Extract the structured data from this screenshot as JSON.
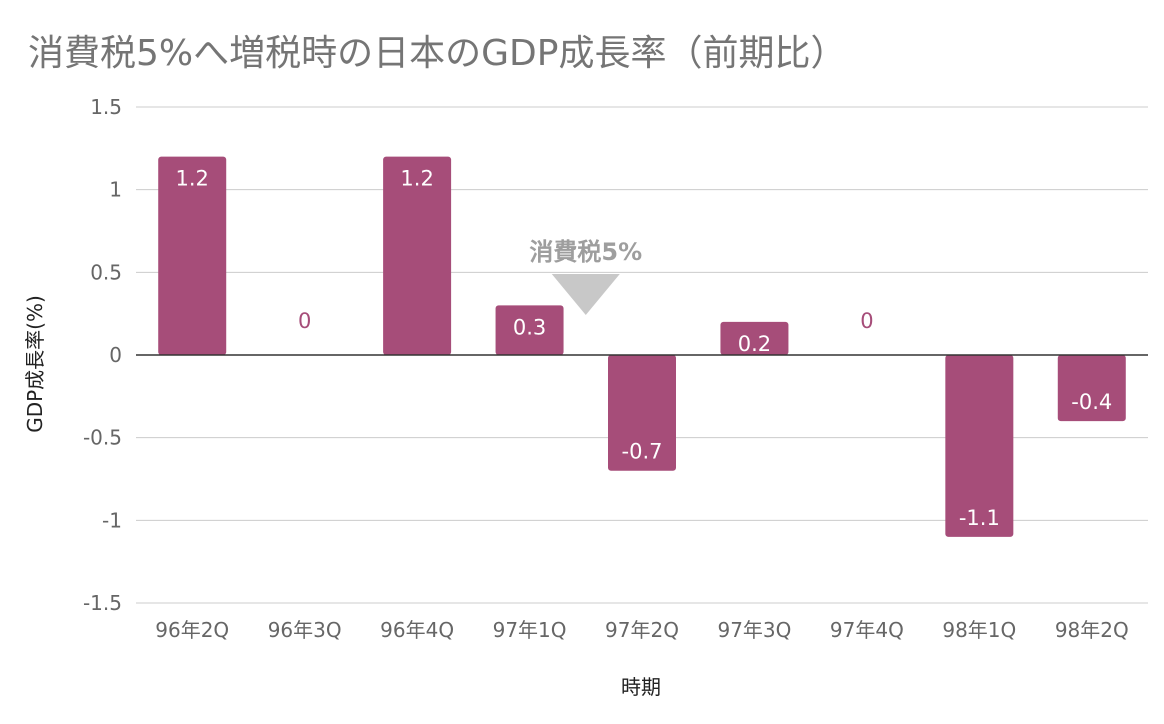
{
  "title": "消費税5%へ増税時の日本のGDP成長率（前期比）",
  "chart_data": {
    "type": "bar",
    "categories": [
      "96年2Q",
      "96年3Q",
      "96年4Q",
      "97年1Q",
      "97年2Q",
      "97年3Q",
      "97年4Q",
      "98年1Q",
      "98年2Q"
    ],
    "series": [
      {
        "values": [
          1.2,
          0,
          1.2,
          0.3,
          -0.7,
          0.2,
          0,
          -1.1,
          -0.4
        ]
      }
    ],
    "data_labels": [
      "1.2",
      "0",
      "1.2",
      "0.3",
      "-0.7",
      "0.2",
      "0",
      "-1.1",
      "-0.4"
    ],
    "xlabel": "時期",
    "ylabel": "GDP成長率(%)",
    "ylim": [
      -1.5,
      1.5
    ],
    "yticks": [
      1.5,
      1,
      0.5,
      0,
      -0.5,
      -1,
      -1.5
    ],
    "ytick_labels": [
      "1.5",
      "1",
      "0.5",
      "0",
      "-0.5",
      "-1",
      "-1.5"
    ],
    "grid": true,
    "legend": "none",
    "annotation": {
      "text": "消費税5%",
      "marker": "triangle-down",
      "between": [
        "97年1Q",
        "97年2Q"
      ]
    }
  },
  "colors": {
    "bar": "#a64d79",
    "label_inside": "#ffffff",
    "label_outside": "#a64d79",
    "grid": "#cccccc",
    "zero_line": "#333333",
    "annotation": "#9e9e9e",
    "annotation_marker": "#c8c8c8"
  }
}
